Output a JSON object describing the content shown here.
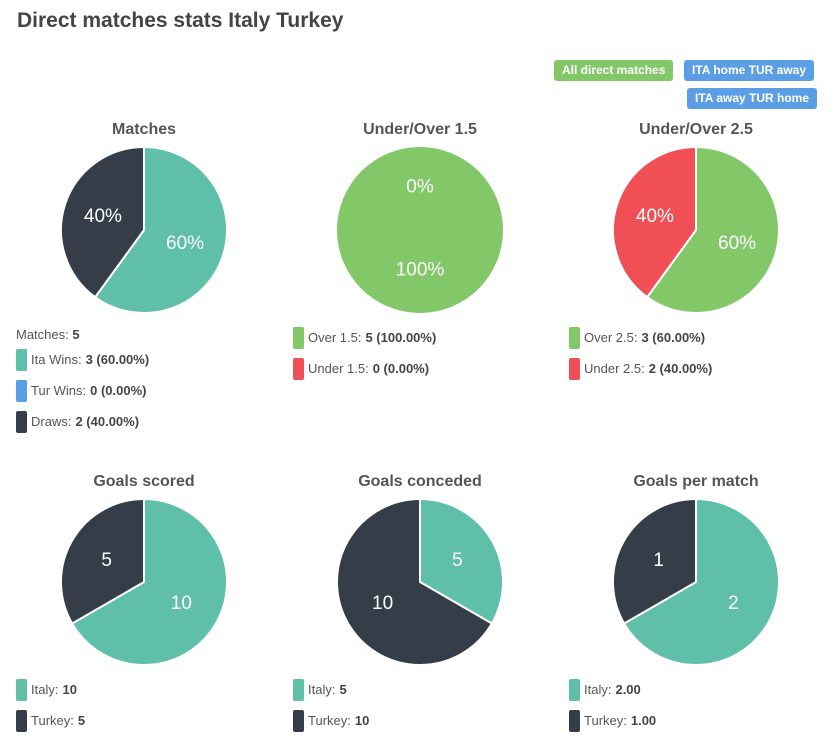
{
  "page": {
    "title": "Direct matches stats Italy Turkey"
  },
  "filters": [
    {
      "label": "All direct matches",
      "color": "#82c868"
    },
    {
      "label": "ITA home TUR away",
      "color": "#5c9ee6"
    },
    {
      "label": "ITA away TUR home",
      "color": "#5c9ee6"
    }
  ],
  "colors": {
    "teal": "#5fbfa8",
    "dark": "#343d48",
    "blue": "#5c9ee6",
    "green": "#82c868",
    "red": "#ef4f55"
  },
  "chart_data": [
    {
      "type": "pie",
      "title": "Matches",
      "slices": [
        {
          "name": "Ita Wins",
          "value": 3,
          "label": "60%",
          "color": "#5fbfa8"
        },
        {
          "name": "Tur Wins",
          "value": 0,
          "label": "",
          "color": "#5c9ee6"
        },
        {
          "name": "Draws",
          "value": 2,
          "label": "40%",
          "color": "#343d48"
        }
      ],
      "legend": {
        "total_label": "Matches:",
        "total_value": "5",
        "items": [
          {
            "label": "Ita Wins:",
            "value": "3 (60.00%)",
            "color": "#5fbfa8"
          },
          {
            "label": "Tur Wins:",
            "value": "0 (0.00%)",
            "color": "#5c9ee6"
          },
          {
            "label": "Draws:",
            "value": "2 (40.00%)",
            "color": "#343d48"
          }
        ]
      }
    },
    {
      "type": "pie",
      "title": "Under/Over 1.5",
      "slices": [
        {
          "name": "Under 1.5",
          "value": 0,
          "label": "0%",
          "color": "#ef4f55"
        },
        {
          "name": "Over 1.5",
          "value": 5,
          "label": "100%",
          "color": "#82c868"
        }
      ],
      "legend": {
        "items": [
          {
            "label": "Over 1.5:",
            "value": "5 (100.00%)",
            "color": "#82c868"
          },
          {
            "label": "Under 1.5:",
            "value": "0 (0.00%)",
            "color": "#ef4f55"
          }
        ]
      }
    },
    {
      "type": "pie",
      "title": "Under/Over 2.5",
      "slices": [
        {
          "name": "Over 2.5",
          "value": 3,
          "label": "60%",
          "color": "#82c868"
        },
        {
          "name": "Under 2.5",
          "value": 2,
          "label": "40%",
          "color": "#ef4f55"
        }
      ],
      "legend": {
        "items": [
          {
            "label": "Over 2.5:",
            "value": "3 (60.00%)",
            "color": "#82c868"
          },
          {
            "label": "Under 2.5:",
            "value": "2 (40.00%)",
            "color": "#ef4f55"
          }
        ]
      }
    },
    {
      "type": "pie",
      "title": "Goals scored",
      "slices": [
        {
          "name": "Italy",
          "value": 10,
          "label": "10",
          "color": "#5fbfa8"
        },
        {
          "name": "Turkey",
          "value": 5,
          "label": "5",
          "color": "#343d48"
        }
      ],
      "legend": {
        "items": [
          {
            "label": "Italy:",
            "value": "10",
            "color": "#5fbfa8"
          },
          {
            "label": "Turkey:",
            "value": "5",
            "color": "#343d48"
          }
        ]
      }
    },
    {
      "type": "pie",
      "title": "Goals conceded",
      "slices": [
        {
          "name": "Italy",
          "value": 5,
          "label": "5",
          "color": "#5fbfa8"
        },
        {
          "name": "Turkey",
          "value": 10,
          "label": "10",
          "color": "#343d48"
        }
      ],
      "legend": {
        "items": [
          {
            "label": "Italy:",
            "value": "5",
            "color": "#5fbfa8"
          },
          {
            "label": "Turkey:",
            "value": "10",
            "color": "#343d48"
          }
        ]
      }
    },
    {
      "type": "pie",
      "title": "Goals per match",
      "slices": [
        {
          "name": "Italy",
          "value": 2,
          "label": "2",
          "color": "#5fbfa8"
        },
        {
          "name": "Turkey",
          "value": 1,
          "label": "1",
          "color": "#343d48"
        }
      ],
      "legend": {
        "items": [
          {
            "label": "Italy:",
            "value": "2.00",
            "color": "#5fbfa8"
          },
          {
            "label": "Turkey:",
            "value": "1.00",
            "color": "#343d48"
          }
        ]
      }
    }
  ]
}
